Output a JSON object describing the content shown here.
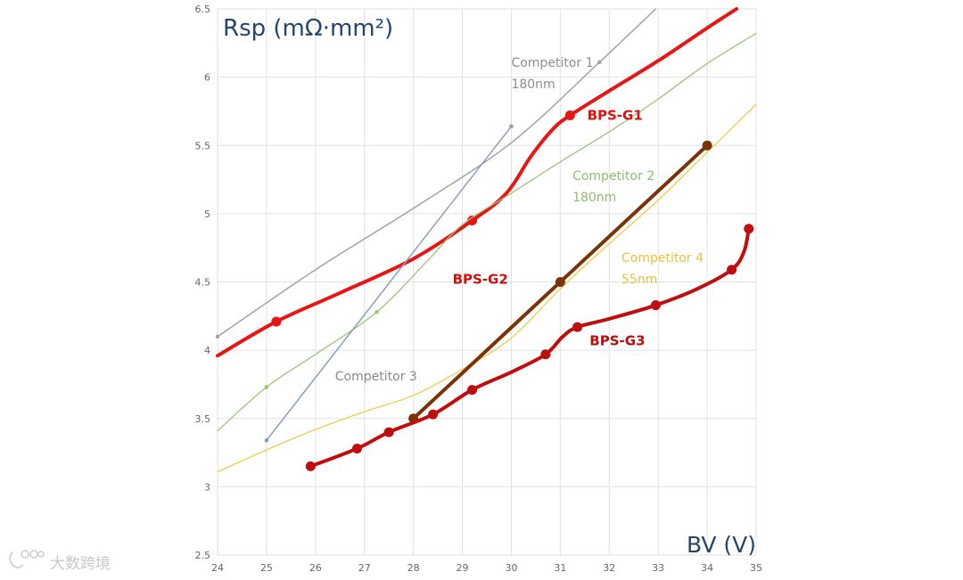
{
  "chart_data": {
    "type": "line",
    "title": "Rsp (mΩ·mm²)",
    "xlabel": "BV (V)",
    "ylabel": "Rsp (mΩ·mm²)",
    "xlim": [
      24,
      35
    ],
    "ylim": [
      2.5,
      6.5
    ],
    "xticks": [
      "24",
      "25",
      "26",
      "27",
      "28",
      "29",
      "30",
      "31",
      "32",
      "33",
      "34",
      "35"
    ],
    "yticks": [
      "2.5",
      "3",
      "3.5",
      "4",
      "4.5",
      "5",
      "5.5",
      "6",
      "6.5"
    ],
    "grid": true,
    "series": [
      {
        "name": "Competitor 1",
        "sublabel": "180nm",
        "color": "#a3a3a3",
        "width": 1.5,
        "markers": "small",
        "points": [
          [
            24.0,
            4.1
          ],
          [
            26.0,
            4.59
          ],
          [
            28.0,
            5.04
          ],
          [
            30.0,
            5.52
          ],
          [
            31.8,
            6.11
          ],
          [
            32.95,
            6.5
          ]
        ],
        "marker_points": [
          [
            24.0,
            4.1
          ],
          [
            31.8,
            6.11
          ]
        ]
      },
      {
        "name": "BPS-G1",
        "color": "#e81515",
        "width": 4,
        "markers": "large",
        "points": [
          [
            24.0,
            3.96
          ],
          [
            25.2,
            4.21
          ],
          [
            26.5,
            4.42
          ],
          [
            28.0,
            4.67
          ],
          [
            29.2,
            4.95
          ],
          [
            29.9,
            5.15
          ],
          [
            30.4,
            5.42
          ],
          [
            30.85,
            5.62
          ],
          [
            31.2,
            5.72
          ],
          [
            32.0,
            5.9
          ],
          [
            33.0,
            6.12
          ],
          [
            34.0,
            6.36
          ],
          [
            34.6,
            6.5
          ]
        ],
        "marker_points": [
          [
            25.2,
            4.21
          ],
          [
            29.2,
            4.95
          ],
          [
            31.2,
            5.72
          ]
        ]
      },
      {
        "name": "Competitor 2",
        "sublabel": "180nm",
        "color": "#9dc57a",
        "width": 1.3,
        "markers": "small",
        "points": [
          [
            24.0,
            3.41
          ],
          [
            25.0,
            3.73
          ],
          [
            26.0,
            3.97
          ],
          [
            27.25,
            4.28
          ],
          [
            28.3,
            4.66
          ],
          [
            29.0,
            4.92
          ],
          [
            30.0,
            5.15
          ],
          [
            31.0,
            5.38
          ],
          [
            32.0,
            5.6
          ],
          [
            33.0,
            5.84
          ],
          [
            34.0,
            6.1
          ],
          [
            35.0,
            6.32
          ]
        ],
        "marker_points": [
          [
            25.0,
            3.73
          ],
          [
            27.25,
            4.28
          ]
        ]
      },
      {
        "name": "Competitor 3",
        "sublabel": "",
        "color": "#8ba0b9",
        "width": 1.5,
        "markers": "small",
        "points": [
          [
            25.0,
            3.34
          ],
          [
            30.0,
            5.64
          ]
        ],
        "marker_points": [
          [
            25.0,
            3.34
          ],
          [
            30.0,
            5.64
          ]
        ]
      },
      {
        "name": "Competitor 4",
        "sublabel": "55nm",
        "color": "#eccd4a",
        "width": 1.3,
        "markers": "none",
        "points": [
          [
            24.0,
            3.11
          ],
          [
            25.0,
            3.27
          ],
          [
            26.0,
            3.42
          ],
          [
            27.0,
            3.55
          ],
          [
            28.0,
            3.67
          ],
          [
            29.0,
            3.86
          ],
          [
            30.0,
            4.09
          ],
          [
            31.0,
            4.45
          ],
          [
            32.0,
            4.78
          ],
          [
            33.0,
            5.1
          ],
          [
            34.0,
            5.45
          ],
          [
            35.0,
            5.8
          ]
        ],
        "marker_points": []
      },
      {
        "name": "BPS-G2",
        "color": "#7b3306",
        "width": 4,
        "markers": "large",
        "points": [
          [
            28.0,
            3.5
          ],
          [
            31.0,
            4.5
          ],
          [
            34.0,
            5.5
          ]
        ],
        "marker_points": [
          [
            28.0,
            3.5
          ],
          [
            31.0,
            4.5
          ],
          [
            34.0,
            5.5
          ]
        ]
      },
      {
        "name": "BPS-G3",
        "color": "#c00d0d",
        "width": 4,
        "markers": "large",
        "points": [
          [
            25.9,
            3.15
          ],
          [
            26.85,
            3.28
          ],
          [
            27.5,
            3.4
          ],
          [
            28.4,
            3.53
          ],
          [
            29.2,
            3.71
          ],
          [
            30.0,
            3.84
          ],
          [
            30.7,
            3.97
          ],
          [
            31.05,
            4.1
          ],
          [
            31.35,
            4.17
          ],
          [
            32.0,
            4.23
          ],
          [
            32.95,
            4.33
          ],
          [
            33.8,
            4.45
          ],
          [
            34.5,
            4.59
          ],
          [
            34.75,
            4.72
          ],
          [
            34.85,
            4.89
          ]
        ],
        "marker_points": [
          [
            25.9,
            3.15
          ],
          [
            26.85,
            3.28
          ],
          [
            27.5,
            3.4
          ],
          [
            28.4,
            3.53
          ],
          [
            29.2,
            3.71
          ],
          [
            30.7,
            3.97
          ],
          [
            31.35,
            4.17
          ],
          [
            32.95,
            4.33
          ],
          [
            34.5,
            4.59
          ],
          [
            34.85,
            4.89
          ]
        ]
      }
    ],
    "annotations": [
      {
        "series": "Competitor 1",
        "lines": [
          "Competitor 1",
          "180nm"
        ],
        "at": [
          30.0,
          6.11
        ],
        "color": "#8e8e8e",
        "bold": false
      },
      {
        "series": "BPS-G1",
        "lines": [
          "BPS-G1"
        ],
        "at": [
          31.55,
          5.72
        ],
        "color": "#dd1111",
        "bold": true
      },
      {
        "series": "Competitor 2",
        "lines": [
          "Competitor 2",
          "180nm"
        ],
        "at": [
          31.25,
          5.28
        ],
        "color": "#8fbc6e",
        "bold": false
      },
      {
        "series": "Competitor 4",
        "lines": [
          "Competitor 4",
          "55nm"
        ],
        "at": [
          32.25,
          4.68
        ],
        "color": "#e3c43f",
        "bold": false
      },
      {
        "series": "BPS-G2",
        "lines": [
          "BPS-G2"
        ],
        "at": [
          28.8,
          4.52
        ],
        "color": "#cc1111",
        "bold": true
      },
      {
        "series": "BPS-G3",
        "lines": [
          "BPS-G3"
        ],
        "at": [
          31.6,
          4.07
        ],
        "color": "#bb0d0d",
        "bold": true
      },
      {
        "series": "Competitor 3",
        "lines": [
          "Competitor 3"
        ],
        "at": [
          26.4,
          3.81
        ],
        "color": "#8a8a8a",
        "bold": false
      }
    ]
  },
  "watermark": "大数跨境"
}
